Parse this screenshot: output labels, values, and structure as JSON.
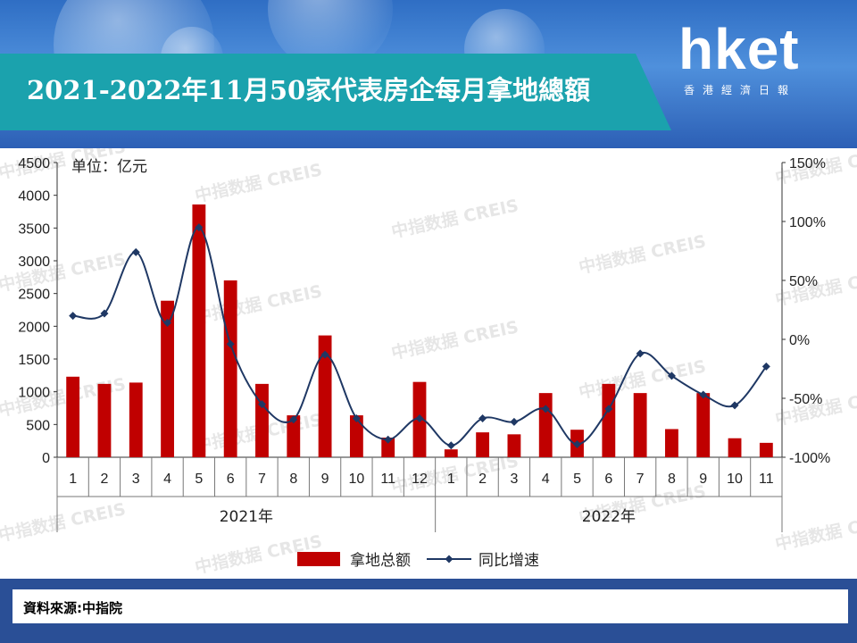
{
  "header": {
    "title": "2021-2022年11月50家代表房企每月拿地總額",
    "logo_main": "hket",
    "logo_sub": "香港經濟日報"
  },
  "footer": {
    "source": "資料來源:中指院"
  },
  "watermark": "中指数据 CREIS",
  "colors": {
    "bar": "#c00000",
    "line": "#1f3864",
    "title_band": "#1ba2ad"
  },
  "chart_data": {
    "type": "bar",
    "unit_label": "单位：亿元",
    "categories": [
      "1",
      "2",
      "3",
      "4",
      "5",
      "6",
      "7",
      "8",
      "9",
      "10",
      "11",
      "12",
      "1",
      "2",
      "3",
      "4",
      "5",
      "6",
      "7",
      "8",
      "9",
      "10",
      "11"
    ],
    "groups": [
      {
        "label": "2021年",
        "start": 0,
        "end": 11
      },
      {
        "label": "2022年",
        "start": 12,
        "end": 22
      }
    ],
    "series": [
      {
        "name": "拿地总额",
        "type": "bar",
        "axis": "left",
        "values": [
          1230,
          1120,
          1140,
          2390,
          3860,
          2700,
          1120,
          640,
          1860,
          640,
          300,
          1150,
          120,
          380,
          350,
          980,
          420,
          1120,
          980,
          430,
          980,
          290,
          220
        ]
      },
      {
        "name": "同比增速",
        "type": "line",
        "axis": "right",
        "unit": "%",
        "values": [
          20,
          22,
          74,
          14,
          95,
          -4,
          -55,
          -68,
          -13,
          -67,
          -85,
          -67,
          -90,
          -67,
          -70,
          -59,
          -89,
          -59,
          -12,
          -31,
          -47,
          -56,
          -23
        ]
      }
    ],
    "ylim_left": [
      0,
      4500
    ],
    "yticks_left": [
      "0",
      "500",
      "1000",
      "1500",
      "2000",
      "2500",
      "3000",
      "3500",
      "4000",
      "4500"
    ],
    "ylim_right": [
      -100,
      150
    ],
    "yticks_right": [
      "-100%",
      "-50%",
      "0%",
      "50%",
      "100%",
      "150%"
    ],
    "legend_position": "bottom",
    "grid": false
  }
}
